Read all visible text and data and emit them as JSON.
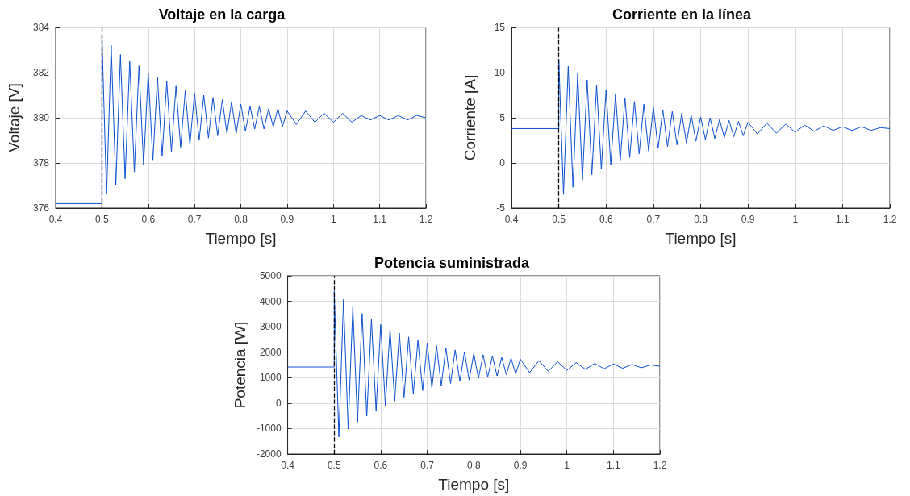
{
  "chart_data": [
    {
      "type": "line",
      "title": "Voltaje en la carga",
      "xlabel": "Tiempo [s]",
      "ylabel": "Voltaje [V]",
      "x": [
        0.4,
        0.5,
        0.5,
        0.51,
        0.52,
        0.53,
        0.54,
        0.55,
        0.56,
        0.57,
        0.58,
        0.59,
        0.6,
        0.61,
        0.62,
        0.63,
        0.64,
        0.65,
        0.66,
        0.67,
        0.68,
        0.69,
        0.7,
        0.71,
        0.72,
        0.73,
        0.74,
        0.75,
        0.76,
        0.77,
        0.78,
        0.79,
        0.8,
        0.81,
        0.82,
        0.83,
        0.84,
        0.85,
        0.86,
        0.87,
        0.88,
        0.89,
        0.9,
        0.92,
        0.94,
        0.96,
        0.98,
        1.0,
        1.02,
        1.04,
        1.06,
        1.08,
        1.1,
        1.12,
        1.14,
        1.16,
        1.18,
        1.2
      ],
      "series": [
        {
          "color": "#0a4fd0",
          "values": [
            376.2,
            376.2,
            383.6,
            376.6,
            383.2,
            377.0,
            382.8,
            377.3,
            382.5,
            377.6,
            382.3,
            377.9,
            382.0,
            378.1,
            381.8,
            378.3,
            381.6,
            378.5,
            381.4,
            378.7,
            381.2,
            378.8,
            381.1,
            379.0,
            381.0,
            379.1,
            380.9,
            379.2,
            380.8,
            379.3,
            380.7,
            379.3,
            380.6,
            379.4,
            380.5,
            379.5,
            380.5,
            379.5,
            380.4,
            379.6,
            380.4,
            379.6,
            380.3,
            379.7,
            380.3,
            379.8,
            380.2,
            379.8,
            380.2,
            379.8,
            380.1,
            379.9,
            380.1,
            379.9,
            380.1,
            379.9,
            380.1,
            380.0
          ]
        }
      ],
      "xlim": [
        0.4,
        1.2
      ],
      "xticks": [
        0.4,
        0.5,
        0.6,
        0.7,
        0.8,
        0.9,
        1,
        1.1,
        1.2
      ],
      "ylim": [
        376,
        384
      ],
      "yticks": [
        376,
        378,
        380,
        382,
        384
      ],
      "grid": true,
      "ref_lines": [
        {
          "axis": "x",
          "value": 0.5,
          "color": "#000000",
          "line_style": "dashed"
        }
      ]
    },
    {
      "type": "line",
      "title": "Corriente en la línea",
      "xlabel": "Tiempo [s]",
      "ylabel": "Corriente [A]",
      "x": [
        0.4,
        0.5,
        0.5,
        0.51,
        0.52,
        0.53,
        0.54,
        0.55,
        0.56,
        0.57,
        0.58,
        0.59,
        0.6,
        0.61,
        0.62,
        0.63,
        0.64,
        0.65,
        0.66,
        0.67,
        0.68,
        0.69,
        0.7,
        0.71,
        0.72,
        0.73,
        0.74,
        0.75,
        0.76,
        0.77,
        0.78,
        0.79,
        0.8,
        0.81,
        0.82,
        0.83,
        0.84,
        0.85,
        0.86,
        0.87,
        0.88,
        0.89,
        0.9,
        0.92,
        0.94,
        0.96,
        0.98,
        1.0,
        1.02,
        1.04,
        1.06,
        1.08,
        1.1,
        1.12,
        1.14,
        1.16,
        1.18,
        1.2
      ],
      "series": [
        {
          "color": "#0a4fd0",
          "values": [
            3.8,
            3.8,
            11.5,
            -3.5,
            10.7,
            -2.7,
            9.9,
            -1.9,
            9.2,
            -1.3,
            8.6,
            -0.7,
            8.1,
            -0.2,
            7.6,
            0.2,
            7.2,
            0.6,
            6.8,
            1.0,
            6.5,
            1.3,
            6.2,
            1.6,
            5.9,
            1.8,
            5.7,
            2.0,
            5.5,
            2.2,
            5.3,
            2.4,
            5.1,
            2.6,
            5.0,
            2.7,
            4.8,
            2.8,
            4.7,
            2.9,
            4.6,
            3.0,
            4.5,
            3.2,
            4.4,
            3.3,
            4.3,
            3.4,
            4.2,
            3.5,
            4.1,
            3.6,
            4.0,
            3.6,
            4.0,
            3.6,
            3.9,
            3.8
          ]
        }
      ],
      "xlim": [
        0.4,
        1.2
      ],
      "xticks": [
        0.4,
        0.5,
        0.6,
        0.7,
        0.8,
        0.9,
        1,
        1.1,
        1.2
      ],
      "ylim": [
        -5,
        15
      ],
      "yticks": [
        -5,
        0,
        5,
        10,
        15
      ],
      "grid": true,
      "ref_lines": [
        {
          "axis": "x",
          "value": 0.5,
          "color": "#000000",
          "line_style": "dashed"
        }
      ]
    },
    {
      "type": "line",
      "title": "Potencia suministrada",
      "xlabel": "Tiempo [s]",
      "ylabel": "Potencia [W]",
      "x": [
        0.4,
        0.5,
        0.5,
        0.51,
        0.52,
        0.53,
        0.54,
        0.55,
        0.56,
        0.57,
        0.58,
        0.59,
        0.6,
        0.61,
        0.62,
        0.63,
        0.64,
        0.65,
        0.66,
        0.67,
        0.68,
        0.69,
        0.7,
        0.71,
        0.72,
        0.73,
        0.74,
        0.75,
        0.76,
        0.77,
        0.78,
        0.79,
        0.8,
        0.81,
        0.82,
        0.83,
        0.84,
        0.85,
        0.86,
        0.87,
        0.88,
        0.89,
        0.9,
        0.92,
        0.94,
        0.96,
        0.98,
        1.0,
        1.02,
        1.04,
        1.06,
        1.08,
        1.1,
        1.12,
        1.14,
        1.16,
        1.18,
        1.2
      ],
      "series": [
        {
          "color": "#0a4fd0",
          "values": [
            1420,
            1420,
            4400,
            -1330,
            4070,
            -1020,
            3780,
            -750,
            3520,
            -510,
            3290,
            -290,
            3090,
            -100,
            2910,
            80,
            2750,
            230,
            2600,
            360,
            2470,
            490,
            2360,
            590,
            2260,
            690,
            2170,
            770,
            2090,
            850,
            2020,
            910,
            1950,
            970,
            1900,
            1030,
            1850,
            1070,
            1800,
            1120,
            1770,
            1150,
            1730,
            1200,
            1670,
            1250,
            1630,
            1290,
            1590,
            1330,
            1560,
            1350,
            1540,
            1370,
            1520,
            1390,
            1500,
            1450
          ]
        }
      ],
      "xlim": [
        0.4,
        1.2
      ],
      "xticks": [
        0.4,
        0.5,
        0.6,
        0.7,
        0.8,
        0.9,
        1,
        1.1,
        1.2
      ],
      "ylim": [
        -2000,
        5000
      ],
      "yticks": [
        -2000,
        -1000,
        0,
        1000,
        2000,
        3000,
        4000,
        5000
      ],
      "grid": true,
      "ref_lines": [
        {
          "axis": "x",
          "value": 0.5,
          "color": "#000000",
          "line_style": "dashed"
        }
      ]
    }
  ]
}
